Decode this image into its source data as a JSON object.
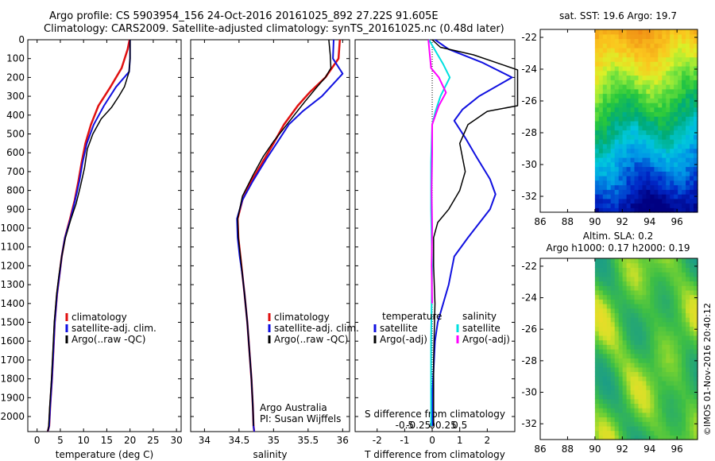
{
  "header": {
    "line1": "Argo profile: CS 5903954_156 24-Oct-2016 20161025_892 27.22S 91.605E",
    "line2": "Climatology: CARS2009. Satellite-adjusted climatology: synTS_20161025.nc (0.48d later)"
  },
  "side_label": "©IMOS 01-Nov-2016 20:40:12",
  "colors": {
    "clim": "#e01010",
    "sat": "#1010e0",
    "argo": "#000000",
    "sat_s": "#00e0e0",
    "argo_s": "#ff00ff"
  },
  "legends": {
    "temp": [
      "climatology",
      "satellite-adj. clim.",
      "Argo(..raw -QC)"
    ],
    "sal": [
      "climatology",
      "satellite-adj. clim.",
      "Argo(..raw -QC)"
    ],
    "diff": {
      "temperature_head": "temperature",
      "salinity_head": "salinity",
      "t_items": [
        "satellite",
        "Argo(-adj)"
      ],
      "s_items": [
        "satellite",
        "Argo(-adj)"
      ]
    }
  },
  "annotations": {
    "credit1": "Argo Australia",
    "credit2": "PI: Susan Wijffels"
  },
  "chart_data": [
    {
      "id": "temp",
      "type": "line",
      "xlabel": "temperature (deg C)",
      "ylabel": "",
      "xlim": [
        -2,
        31
      ],
      "ylim": [
        2080,
        0
      ],
      "xticks": [
        0,
        5,
        10,
        15,
        20,
        25,
        30
      ],
      "yticks": [
        0,
        100,
        200,
        300,
        400,
        500,
        600,
        700,
        800,
        900,
        1000,
        1100,
        1200,
        1300,
        1400,
        1500,
        1600,
        1700,
        1800,
        1900,
        2000
      ],
      "series": [
        {
          "name": "climatology",
          "color": "clim",
          "width": 2.5,
          "x": [
            19.9,
            19.5,
            18.2,
            15.8,
            13.2,
            11.6,
            10.4,
            9.6,
            8.9,
            8.1,
            7.1,
            6.0,
            5.3,
            4.8,
            4.3,
            3.8,
            3.5,
            3.2,
            2.8,
            2.6,
            2.4,
            2.3
          ],
          "y": [
            0,
            50,
            150,
            250,
            350,
            450,
            550,
            650,
            750,
            850,
            950,
            1050,
            1150,
            1250,
            1350,
            1500,
            1650,
            1800,
            1950,
            2050,
            2070,
            2080
          ]
        },
        {
          "name": "satellite-adj. clim.",
          "color": "sat",
          "width": 2,
          "x": [
            20.0,
            20.0,
            19.8,
            17.0,
            14.4,
            12.2,
            10.7,
            9.8,
            9.1,
            8.2,
            7.2,
            6.0,
            5.3,
            4.8,
            4.3,
            3.8,
            3.5,
            3.2,
            2.8,
            2.6,
            2.4,
            2.3
          ],
          "y": [
            0,
            100,
            170,
            250,
            350,
            450,
            550,
            650,
            750,
            850,
            950,
            1050,
            1150,
            1250,
            1350,
            1500,
            1650,
            1800,
            1950,
            2050,
            2070,
            2080
          ]
        },
        {
          "name": "Argo(..raw -QC)",
          "color": "argo",
          "width": 1.5,
          "x": [
            20.0,
            20.0,
            19.8,
            18.8,
            17.6,
            16.0,
            13.8,
            12.0,
            10.8,
            10.2,
            9.3,
            8.4,
            7.3,
            6.1,
            5.3,
            4.7,
            4.2,
            3.7,
            3.4,
            3.1,
            2.7,
            2.5,
            2.3
          ],
          "y": [
            0,
            100,
            170,
            250,
            300,
            360,
            420,
            500,
            580,
            680,
            780,
            870,
            950,
            1050,
            1150,
            1250,
            1350,
            1500,
            1650,
            1800,
            1950,
            2050,
            2080
          ]
        }
      ]
    },
    {
      "id": "sal",
      "type": "line",
      "xlabel": "salinity",
      "ylabel": "",
      "xlim": [
        33.8,
        36.1
      ],
      "ylim": [
        2080,
        0
      ],
      "xticks": [
        34,
        34.5,
        35,
        35.5,
        36
      ],
      "series": [
        {
          "name": "climatology",
          "color": "clim",
          "width": 2.5,
          "x": [
            35.96,
            35.94,
            35.75,
            35.52,
            35.35,
            35.15,
            35.0,
            34.84,
            34.68,
            34.55,
            34.48,
            34.49,
            34.52,
            34.55,
            34.58,
            34.62,
            34.65,
            34.68,
            34.7,
            34.71,
            34.72
          ],
          "y": [
            0,
            100,
            200,
            280,
            350,
            450,
            550,
            650,
            750,
            850,
            950,
            1050,
            1150,
            1250,
            1350,
            1500,
            1650,
            1800,
            1950,
            2050,
            2080
          ]
        },
        {
          "name": "satellite-adj. clim.",
          "color": "sat",
          "width": 2,
          "x": [
            35.87,
            35.86,
            36.0,
            35.7,
            35.42,
            35.22,
            35.08,
            34.9,
            34.7,
            34.55,
            34.47,
            34.48,
            34.51,
            34.55,
            34.58,
            34.62,
            34.65,
            34.68,
            34.7,
            34.71,
            34.72
          ],
          "y": [
            0,
            100,
            180,
            300,
            380,
            450,
            530,
            630,
            750,
            850,
            950,
            1050,
            1150,
            1250,
            1350,
            1500,
            1650,
            1800,
            1950,
            2050,
            2080
          ]
        },
        {
          "name": "Argo(..raw -QC)",
          "color": "argo",
          "width": 1.5,
          "x": [
            35.8,
            35.82,
            35.83,
            35.75,
            35.63,
            35.45,
            35.3,
            35.15,
            35.0,
            34.85,
            34.7,
            34.55,
            34.48,
            34.49,
            34.52,
            34.55,
            34.58,
            34.62,
            34.65,
            34.68,
            34.7,
            34.71
          ],
          "y": [
            0,
            80,
            150,
            200,
            250,
            330,
            400,
            470,
            540,
            620,
            720,
            830,
            950,
            1050,
            1150,
            1250,
            1350,
            1500,
            1650,
            1800,
            1950,
            2050
          ]
        }
      ]
    },
    {
      "id": "diff",
      "type": "line",
      "xlabel": "T difference from climatology",
      "top_label": "S difference from climatology",
      "xlim": [
        -2.8,
        3.0
      ],
      "ylim": [
        2080,
        0
      ],
      "xticks_bottom": [
        -2,
        -1,
        0,
        1,
        2
      ],
      "xticks_top": [
        -0.5,
        -0.25,
        0,
        0.25,
        0.5
      ],
      "xticks_top_labels": [
        "-0.5",
        "-0.25",
        "0",
        "0.25",
        "0.5"
      ],
      "series": [
        {
          "name": "T satellite",
          "color": "sat",
          "width": 2,
          "x": [
            0.1,
            0.6,
            1.8,
            2.9,
            1.7,
            1.1,
            0.8,
            1.2,
            1.6,
            2.1,
            2.3,
            2.1,
            1.3,
            0.8,
            0.6,
            0.4,
            0.2,
            0.1,
            0.05,
            0.0,
            0.0
          ],
          "y": [
            0,
            50,
            120,
            200,
            300,
            370,
            430,
            520,
            620,
            740,
            820,
            900,
            1050,
            1150,
            1300,
            1400,
            1500,
            1600,
            1750,
            1900,
            2050
          ]
        },
        {
          "name": "T Argo(-adj)",
          "color": "argo",
          "width": 1.5,
          "x": [
            0.0,
            0.3,
            1.5,
            3.1,
            3.1,
            2.0,
            1.3,
            1.0,
            1.2,
            1.0,
            0.6,
            0.2,
            0.05,
            0.05,
            0.1,
            0.05,
            0.05
          ],
          "y": [
            0,
            40,
            80,
            160,
            350,
            380,
            450,
            550,
            700,
            800,
            900,
            970,
            1050,
            1200,
            1400,
            1700,
            2050
          ]
        },
        {
          "name": "S satellite",
          "color": "sat_s",
          "width": 2,
          "x": [
            -0.06,
            0.1,
            0.2,
            0.32,
            0.15,
            0.06,
            0.0,
            -0.02,
            -0.02,
            0.0,
            -0.02,
            -0.02
          ],
          "y": [
            0,
            80,
            130,
            200,
            300,
            380,
            450,
            650,
            900,
            1200,
            1600,
            2050
          ]
        },
        {
          "name": "S Argo(-adj)",
          "color": "argo_s",
          "width": 2,
          "x": [
            -0.07,
            -0.02,
            0.12,
            0.25,
            0.12,
            0.0,
            0.0,
            -0.01,
            0.0,
            -0.01,
            0.0
          ],
          "y": [
            0,
            150,
            200,
            280,
            350,
            450,
            600,
            800,
            1000,
            1200,
            1400
          ]
        }
      ]
    },
    {
      "id": "sst_map",
      "type": "heatmap",
      "title": "sat. SST: 19.6  Argo: 19.7",
      "xlim": [
        86,
        97.5
      ],
      "ylim": [
        -33,
        -21.5
      ],
      "xticks": [
        86,
        88,
        90,
        92,
        94,
        96
      ],
      "yticks": [
        -22,
        -24,
        -26,
        -28,
        -30,
        -32
      ],
      "data_lon_range": [
        90,
        97.5
      ]
    },
    {
      "id": "sla_map",
      "type": "heatmap",
      "title_line1": "Altim. SLA: 0.2",
      "title_line2": "Argo h1000: 0.17 h2000: 0.19",
      "xlim": [
        86,
        97.5
      ],
      "ylim": [
        -33,
        -21.5
      ],
      "xticks": [
        86,
        88,
        90,
        92,
        94,
        96
      ],
      "yticks": [
        -22,
        -24,
        -26,
        -28,
        -30,
        -32
      ],
      "data_lon_range": [
        90,
        97.5
      ]
    }
  ]
}
